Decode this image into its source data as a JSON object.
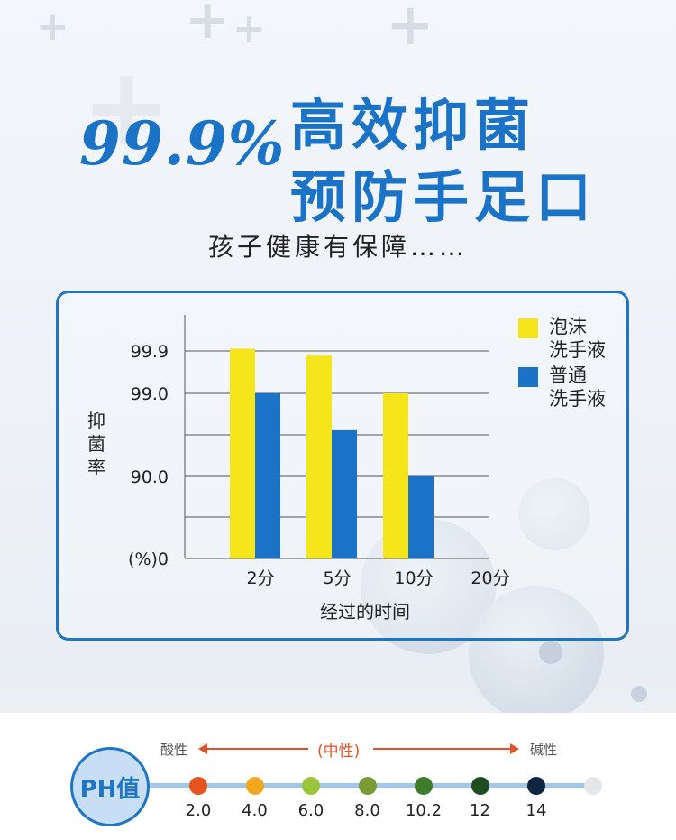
{
  "headline": {
    "percent": "99.9%",
    "line1": "高效抑菌",
    "line2": "预防手足口",
    "subtitle": "孩子健康有保障……"
  },
  "chart_data": {
    "type": "bar",
    "categories": [
      "2分",
      "5分",
      "10分",
      "20分"
    ],
    "series": [
      {
        "name": "泡沫洗手液",
        "values": [
          99.95,
          99.8,
          99.0,
          null
        ],
        "color": "#f4e61a"
      },
      {
        "name": "普通洗手液",
        "values": [
          99.0,
          95.0,
          90.0,
          null
        ],
        "color": "#1a73c6"
      }
    ],
    "xlabel": "经过的时间",
    "ylabel": "抑菌率",
    "y_ticks": [
      {
        "label": "(%)0",
        "value": 0
      },
      {
        "label": "90.0",
        "value": 90.0
      },
      {
        "label": "99.0",
        "value": 99.0
      },
      {
        "label": "99.9",
        "value": 99.9
      }
    ],
    "grid": true,
    "legend": {
      "placement": "top-right",
      "items": [
        {
          "line1": "泡沫",
          "line2": "洗手液",
          "color": "#f4e61a"
        },
        {
          "line1": "普通",
          "line2": "洗手液",
          "color": "#1a73c6"
        }
      ]
    }
  },
  "ph": {
    "badge": "PH值",
    "acid_label": "酸性",
    "neutral_label": "(中性)",
    "alkaline_label": "碱性",
    "scale": [
      {
        "value": "2.0",
        "color": "#e5531e"
      },
      {
        "value": "4.0",
        "color": "#f3a620"
      },
      {
        "value": "6.0",
        "color": "#9bc43b"
      },
      {
        "value": "8.0",
        "color": "#7b9a34"
      },
      {
        "value": "10.2",
        "color": "#3d7d2c"
      },
      {
        "value": "12",
        "color": "#1e4d22"
      },
      {
        "value": "14",
        "color": "#0f2540"
      },
      {
        "value": "",
        "color": "#e4e6e8"
      }
    ]
  }
}
